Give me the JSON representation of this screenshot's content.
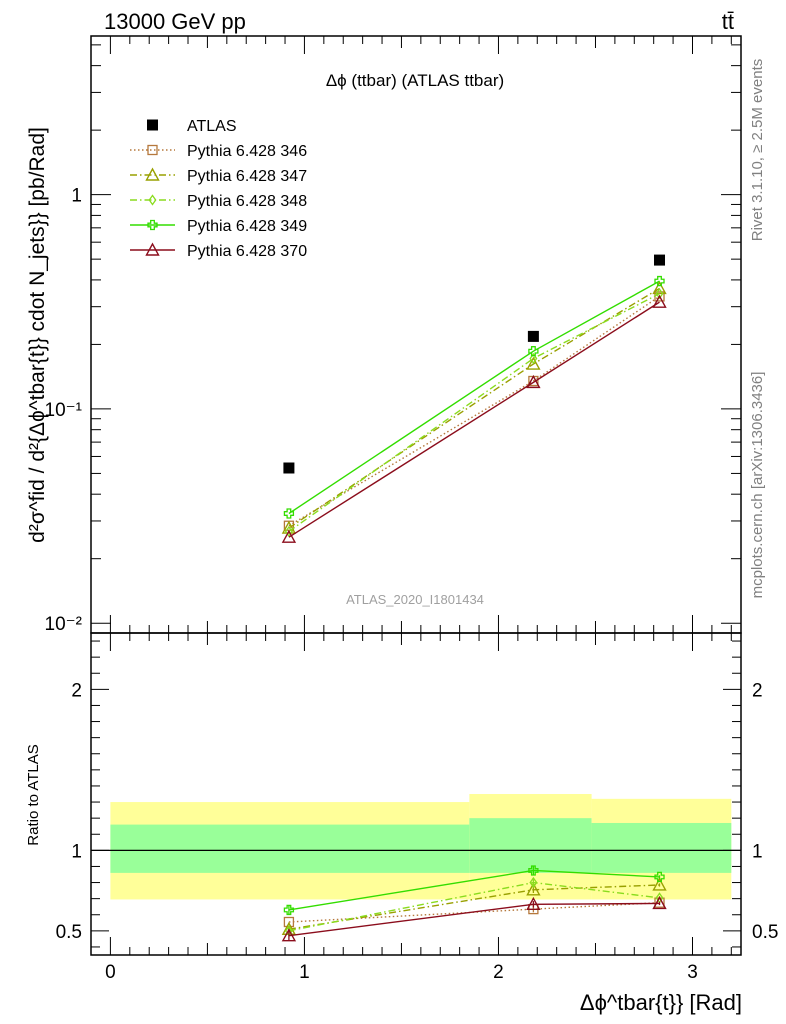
{
  "header": {
    "left": "13000 GeV pp",
    "right": "tt̄"
  },
  "side_labels": {
    "right_top": "Rivet 3.1.10, ≥ 2.5M events",
    "right_bottom": "mcplots.cern.ch [arXiv:1306.3436]"
  },
  "chart_data": [
    {
      "type": "scatter",
      "title": "Δϕ (ttbar) (ATLAS ttbar)",
      "watermark": "ATLAS_2020_I1801434",
      "ylabel": "d²σ^fid / d²{Δϕ^tbar{t}} cdot N_jets}} [pb/Rad]",
      "yscale": "log",
      "ylim": [
        0.009,
        5.5
      ],
      "xlim": [
        -0.1,
        3.25
      ],
      "y_tick_labels": [
        "10⁻²",
        "10⁻¹",
        "1"
      ],
      "x": [
        0.92,
        2.18,
        2.83
      ],
      "series": [
        {
          "name": "ATLAS",
          "color": "#000000",
          "marker": "square-filled",
          "line": "none",
          "values": [
            0.053,
            0.218,
            0.495
          ]
        },
        {
          "name": "Pythia 6.428 346",
          "color": "#b5783c",
          "marker": "square-open",
          "line": "dotted",
          "values": [
            0.0285,
            0.135,
            0.335
          ]
        },
        {
          "name": "Pythia 6.428 347",
          "color": "#99a000",
          "marker": "triangle-open",
          "line": "dashdot",
          "values": [
            0.0278,
            0.162,
            0.365
          ]
        },
        {
          "name": "Pythia 6.428 348",
          "color": "#8adc1e",
          "marker": "diamond-open",
          "line": "dashdot",
          "values": [
            0.0268,
            0.172,
            0.345
          ]
        },
        {
          "name": "Pythia 6.428 349",
          "color": "#33dd00",
          "marker": "cross-open",
          "line": "solid",
          "values": [
            0.0325,
            0.186,
            0.395
          ]
        },
        {
          "name": "Pythia 6.428 370",
          "color": "#8b0d1c",
          "marker": "triangle-open",
          "line": "solid",
          "values": [
            0.0252,
            0.133,
            0.315
          ]
        }
      ]
    },
    {
      "type": "scatter",
      "ylabel": "Ratio to ATLAS",
      "xlabel": "Δϕ^tbar{t}} [Rad]",
      "ylim": [
        0.35,
        2.35
      ],
      "xlim": [
        -0.1,
        3.25
      ],
      "x_tick_labels": [
        "0",
        "1",
        "2",
        "3"
      ],
      "y_tick_labels": [
        "0.5",
        "1",
        "2"
      ],
      "reference_line": 1,
      "bands": [
        {
          "x0": 0.0,
          "x1": 1.85,
          "yellow": [
            0.695,
            1.3
          ],
          "green": [
            0.86,
            1.16
          ]
        },
        {
          "x0": 1.85,
          "x1": 2.48,
          "yellow": [
            0.695,
            1.35
          ],
          "green": [
            0.86,
            1.2
          ]
        },
        {
          "x0": 2.48,
          "x1": 3.2,
          "yellow": [
            0.695,
            1.32
          ],
          "green": [
            0.86,
            1.17
          ]
        }
      ],
      "x": [
        0.92,
        2.18,
        2.83
      ],
      "series": [
        {
          "name": "Pythia 6.428 346",
          "color": "#b5783c",
          "marker": "square-open",
          "line": "dotted",
          "values": [
            0.555,
            0.635,
            0.675
          ],
          "errors": [
            0.0,
            0.02,
            0.01
          ]
        },
        {
          "name": "Pythia 6.428 347",
          "color": "#99a000",
          "marker": "triangle-open",
          "line": "dashdot",
          "values": [
            0.51,
            0.755,
            0.785
          ],
          "errors": [
            0.02,
            0.02,
            0.01
          ]
        },
        {
          "name": "Pythia 6.428 348",
          "color": "#8adc1e",
          "marker": "diamond-open",
          "line": "dashdot",
          "values": [
            0.5,
            0.8,
            0.705
          ],
          "errors": [
            0.02,
            0.02,
            0.01
          ]
        },
        {
          "name": "Pythia 6.428 349",
          "color": "#33dd00",
          "marker": "cross-open",
          "line": "solid",
          "values": [
            0.63,
            0.875,
            0.835
          ],
          "errors": [
            0.03,
            0.03,
            0.01
          ]
        },
        {
          "name": "Pythia 6.428 370",
          "color": "#8b0d1c",
          "marker": "triangle-open",
          "line": "solid",
          "values": [
            0.47,
            0.665,
            0.67
          ],
          "errors": [
            0.03,
            0.02,
            0.01
          ]
        }
      ]
    }
  ]
}
